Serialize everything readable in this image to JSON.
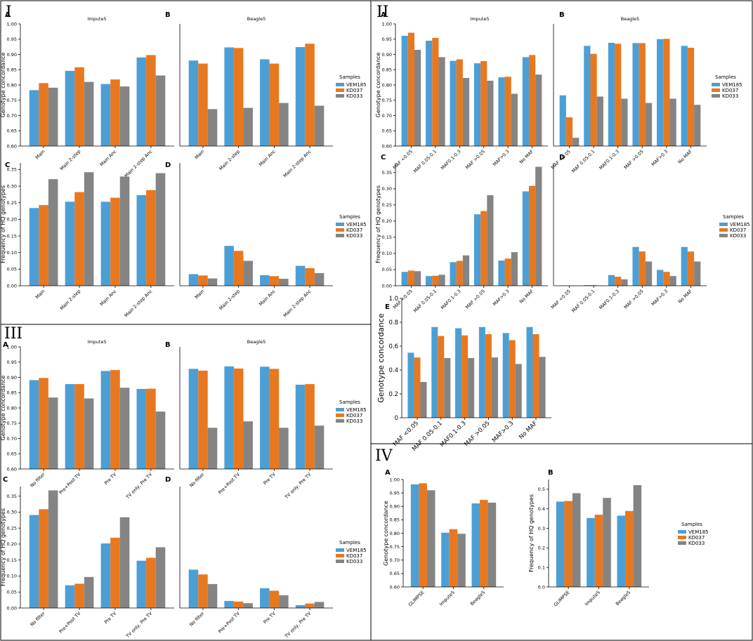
{
  "colors": {
    "VEM185": "#4c9fd5",
    "KD037": "#e8781f",
    "KD033": "#848484",
    "frame": "#000000"
  },
  "chart_data": [
    {
      "id": "I-A",
      "section": "I",
      "panel": "A",
      "title": "Impute5",
      "type": "bar",
      "ylabel": "Genotype concordance",
      "ylim": [
        0.6,
        1.0
      ],
      "yticks": [
        "0.60",
        "0.65",
        "0.70",
        "0.75",
        "0.80",
        "0.85",
        "0.90",
        "0.95",
        "1.00"
      ],
      "categories": [
        "Main",
        "Main 2-step",
        "Main Anc",
        "Main 2-step Anc"
      ],
      "series": [
        {
          "name": "VEM185",
          "values": [
            0.783,
            0.846,
            0.803,
            0.89
          ]
        },
        {
          "name": "KD037",
          "values": [
            0.806,
            0.858,
            0.818,
            0.898
          ]
        },
        {
          "name": "KD033",
          "values": [
            0.791,
            0.81,
            0.795,
            0.831
          ]
        }
      ]
    },
    {
      "id": "I-B",
      "section": "I",
      "panel": "B",
      "title": "Beagle5",
      "type": "bar",
      "ylabel": "",
      "ylim": [
        0.6,
        1.0
      ],
      "yticks": [],
      "categories": [
        "Main",
        "Main 2-step",
        "Main Anc",
        "Main 2-step Anc"
      ],
      "legend": {
        "title": "Samples",
        "items": [
          "VEM185",
          "KD037",
          "KD033"
        ]
      },
      "series": [
        {
          "name": "VEM185",
          "values": [
            0.88,
            0.923,
            0.884,
            0.924
          ]
        },
        {
          "name": "KD037",
          "values": [
            0.87,
            0.921,
            0.87,
            0.935
          ]
        },
        {
          "name": "KD033",
          "values": [
            0.721,
            0.725,
            0.741,
            0.732
          ]
        }
      ]
    },
    {
      "id": "I-C",
      "section": "I",
      "panel": "C",
      "title": "",
      "type": "bar",
      "ylabel": "Frequency of HQ genotypes",
      "ylim": [
        0,
        0.37
      ],
      "yticks": [
        "0.00",
        "0.05",
        "0.10",
        "0.15",
        "0.20",
        "0.25",
        "0.30",
        "0.35"
      ],
      "categories": [
        "Main",
        "Main 2-step",
        "Main Anc",
        "Main 2-step Anc"
      ],
      "series": [
        {
          "name": "VEM185",
          "values": [
            0.234,
            0.253,
            0.253,
            0.273
          ]
        },
        {
          "name": "KD037",
          "values": [
            0.243,
            0.282,
            0.265,
            0.288
          ]
        },
        {
          "name": "KD033",
          "values": [
            0.321,
            0.342,
            0.329,
            0.339
          ]
        }
      ]
    },
    {
      "id": "I-D",
      "section": "I",
      "panel": "D",
      "title": "",
      "type": "bar",
      "ylabel": "",
      "ylim": [
        0,
        0.37
      ],
      "yticks": [],
      "categories": [
        "Main",
        "Main 2-step",
        "Main Anc",
        "Main 2-step Anc"
      ],
      "legend": {
        "title": "Samples",
        "items": [
          "VEM185",
          "KD037",
          "KD033"
        ]
      },
      "series": [
        {
          "name": "VEM185",
          "values": [
            0.035,
            0.12,
            0.032,
            0.06
          ]
        },
        {
          "name": "KD037",
          "values": [
            0.031,
            0.105,
            0.029,
            0.053
          ]
        },
        {
          "name": "KD033",
          "values": [
            0.022,
            0.075,
            0.021,
            0.038
          ]
        }
      ]
    },
    {
      "id": "II-A",
      "section": "II",
      "panel": "A",
      "title": "Impute5",
      "type": "bar",
      "ylabel": "Genotype concordance",
      "ylim": [
        0.6,
        1.0
      ],
      "yticks": [
        "0.60",
        "0.65",
        "0.70",
        "0.75",
        "0.80",
        "0.85",
        "0.90",
        "0.95",
        "1.00"
      ],
      "categories": [
        "MAF <0.05",
        "MAF 0.05-0.1",
        "MAF0.1-0.3",
        "MAF >0.05",
        "MAF>0.3",
        "No MAF"
      ],
      "series": [
        {
          "name": "VEM185",
          "values": [
            0.961,
            0.945,
            0.879,
            0.871,
            0.825,
            0.891
          ]
        },
        {
          "name": "KD037",
          "values": [
            0.971,
            0.954,
            0.884,
            0.878,
            0.827,
            0.898
          ]
        },
        {
          "name": "KD033",
          "values": [
            0.915,
            0.891,
            0.823,
            0.814,
            0.771,
            0.834
          ]
        }
      ]
    },
    {
      "id": "II-B",
      "section": "II",
      "panel": "B",
      "title": "Beagle5",
      "type": "bar",
      "ylabel": "",
      "ylim": [
        0.6,
        1.0
      ],
      "yticks": [],
      "categories": [
        "MAF <0.05",
        "MAF 0.05-0.1",
        "MAF0.1-0.3",
        "MAF >0.05",
        "MAF>0.3",
        "No MAF"
      ],
      "legend": {
        "title": "Samples",
        "items": [
          "VEM185",
          "KD037",
          "KD033"
        ]
      },
      "series": [
        {
          "name": "VEM185",
          "values": [
            0.766,
            0.928,
            0.938,
            0.937,
            0.95,
            0.928
          ]
        },
        {
          "name": "KD037",
          "values": [
            0.694,
            0.902,
            0.935,
            0.937,
            0.951,
            0.922
          ]
        },
        {
          "name": "KD033",
          "values": [
            0.627,
            0.762,
            0.755,
            0.741,
            0.755,
            0.735
          ]
        }
      ]
    },
    {
      "id": "II-C",
      "section": "II",
      "panel": "C",
      "title": "",
      "type": "bar",
      "ylabel": "Frequency of HQ genotypes",
      "ylim": [
        0,
        0.38
      ],
      "yticks": [
        "0.00",
        "0.05",
        "0.10",
        "0.15",
        "0.20",
        "0.25",
        "0.30",
        "0.35"
      ],
      "categories": [
        "MAF <0.05",
        "MAF 0.05-0.1",
        "MAF0.1-0.3",
        "MAF >0.05",
        "MAF>0.3",
        "No MAF"
      ],
      "series": [
        {
          "name": "VEM185",
          "values": [
            0.043,
            0.03,
            0.073,
            0.221,
            0.078,
            0.292
          ]
        },
        {
          "name": "KD037",
          "values": [
            0.047,
            0.031,
            0.077,
            0.231,
            0.084,
            0.309
          ]
        },
        {
          "name": "KD033",
          "values": [
            0.045,
            0.034,
            0.094,
            0.28,
            0.104,
            0.368
          ]
        }
      ]
    },
    {
      "id": "II-D",
      "section": "II",
      "panel": "D",
      "title": "",
      "type": "bar",
      "ylabel": "",
      "ylim": [
        0,
        0.38
      ],
      "yticks": [],
      "categories": [
        "MAF <0.05",
        "MAF 0.05-0.1",
        "MAF0.1-0.3",
        "MAF >0.05",
        "MAF>0.3",
        "No MAF"
      ],
      "legend": {
        "title": "Samples",
        "items": [
          "VEM185",
          "KD037",
          "KD033"
        ]
      },
      "series": [
        {
          "name": "VEM185",
          "values": [
            0.001,
            0.002,
            0.033,
            0.12,
            0.049,
            0.12
          ]
        },
        {
          "name": "KD037",
          "values": [
            0.001,
            0.002,
            0.028,
            0.106,
            0.043,
            0.106
          ]
        },
        {
          "name": "KD033",
          "values": [
            0.001,
            0.001,
            0.02,
            0.075,
            0.03,
            0.075
          ]
        }
      ]
    },
    {
      "id": "II-E",
      "section": "II",
      "panel": "E",
      "title": "",
      "type": "bar",
      "ylabel": "Genotype concordance",
      "ylim": [
        0,
        1.0
      ],
      "yticks": [
        "0",
        "0.2",
        "0.4",
        "0.6",
        "0.8",
        "1.0"
      ],
      "categories": [
        "MAF <0.05",
        "MAF 0.05-0.1",
        "MAF0.1-0.3",
        "MAF >0.05",
        "MAF>0.3",
        "No MAF"
      ],
      "series": [
        {
          "name": "VEM185",
          "values": [
            0.545,
            0.76,
            0.75,
            0.76,
            0.71,
            0.76
          ]
        },
        {
          "name": "KD037",
          "values": [
            0.505,
            0.685,
            0.69,
            0.7,
            0.65,
            0.7
          ]
        },
        {
          "name": "KD033",
          "values": [
            0.3,
            0.5,
            0.5,
            0.505,
            0.45,
            0.51
          ]
        }
      ]
    },
    {
      "id": "III-A",
      "section": "III",
      "panel": "A",
      "title": "Impute5",
      "type": "bar",
      "ylabel": "Genotype concordance",
      "ylim": [
        0.6,
        1.0
      ],
      "yticks": [
        "0.60",
        "0.65",
        "0.70",
        "0.75",
        "0.80",
        "0.85",
        "0.90",
        "0.95",
        "1.00"
      ],
      "categories": [
        "No filter",
        "Pre+Post TV",
        "Pre TV",
        "TV only, Pre TV"
      ],
      "series": [
        {
          "name": "VEM185",
          "values": [
            0.891,
            0.878,
            0.921,
            0.862
          ]
        },
        {
          "name": "KD037",
          "values": [
            0.898,
            0.878,
            0.924,
            0.863
          ]
        },
        {
          "name": "KD033",
          "values": [
            0.834,
            0.831,
            0.866,
            0.788
          ]
        }
      ]
    },
    {
      "id": "III-B",
      "section": "III",
      "panel": "B",
      "title": "Beagle5",
      "type": "bar",
      "ylabel": "",
      "ylim": [
        0.6,
        1.0
      ],
      "yticks": [],
      "categories": [
        "No filter",
        "Pre+Post TV",
        "Pre TV",
        "TV only, Pre TV"
      ],
      "legend": {
        "title": "Samples",
        "items": [
          "VEM185",
          "KD037",
          "KD033"
        ]
      },
      "series": [
        {
          "name": "VEM185",
          "values": [
            0.928,
            0.936,
            0.935,
            0.876
          ]
        },
        {
          "name": "KD037",
          "values": [
            0.922,
            0.929,
            0.928,
            0.878
          ]
        },
        {
          "name": "KD033",
          "values": [
            0.735,
            0.756,
            0.735,
            0.742
          ]
        }
      ]
    },
    {
      "id": "III-C",
      "section": "III",
      "panel": "C",
      "title": "",
      "type": "bar",
      "ylabel": "Frequency of HQ genotypes",
      "ylim": [
        0,
        0.38
      ],
      "yticks": [
        "0.00",
        "0.05",
        "0.10",
        "0.15",
        "0.20",
        "0.25",
        "0.30",
        "0.35"
      ],
      "categories": [
        "No filter",
        "Pre+Post TV",
        "Pre TV",
        "TV only, Pre TV"
      ],
      "series": [
        {
          "name": "VEM185",
          "values": [
            0.291,
            0.071,
            0.202,
            0.148
          ]
        },
        {
          "name": "KD037",
          "values": [
            0.309,
            0.076,
            0.22,
            0.157
          ]
        },
        {
          "name": "KD033",
          "values": [
            0.368,
            0.097,
            0.284,
            0.19
          ]
        }
      ]
    },
    {
      "id": "III-D",
      "section": "III",
      "panel": "D",
      "title": "",
      "type": "bar",
      "ylabel": "",
      "ylim": [
        0,
        0.38
      ],
      "yticks": [],
      "categories": [
        "No filter",
        "Pre+Post TV",
        "Pre TV",
        "TV only, Pre TV"
      ],
      "legend": {
        "title": "Samples",
        "items": [
          "VEM185",
          "KD037",
          "KD033"
        ]
      },
      "series": [
        {
          "name": "VEM185",
          "values": [
            0.12,
            0.022,
            0.062,
            0.009
          ]
        },
        {
          "name": "KD037",
          "values": [
            0.105,
            0.02,
            0.054,
            0.014
          ]
        },
        {
          "name": "KD033",
          "values": [
            0.075,
            0.015,
            0.04,
            0.019
          ]
        }
      ]
    },
    {
      "id": "IV-A",
      "section": "IV",
      "panel": "A",
      "title": "",
      "type": "bar",
      "ylabel": "Genotype concordance",
      "ylim": [
        0.6,
        1.0
      ],
      "yticks": [
        "0.60",
        "0.65",
        "0.70",
        "0.75",
        "0.80",
        "0.85",
        "0.90",
        "0.95",
        "1.00"
      ],
      "categories": [
        "GLIMPSE",
        "Impute5",
        "Beagle5"
      ],
      "series": [
        {
          "name": "VEM185",
          "values": [
            0.982,
            0.802,
            0.911
          ]
        },
        {
          "name": "KD037",
          "values": [
            0.986,
            0.815,
            0.924
          ]
        },
        {
          "name": "KD033",
          "values": [
            0.96,
            0.798,
            0.914
          ]
        }
      ]
    },
    {
      "id": "IV-B",
      "section": "IV",
      "panel": "B",
      "title": "",
      "type": "bar",
      "ylabel": "Frequency of HQ genotypes",
      "ylim": [
        0,
        0.55
      ],
      "yticks": [
        "0.0",
        "0.1",
        "0.2",
        "0.3",
        "0.4",
        "0.5"
      ],
      "categories": [
        "GLIMPSE",
        "Impute5",
        "Beagle5"
      ],
      "legend": {
        "title": "Samples",
        "items": [
          "VEM185",
          "KD037",
          "KD033"
        ]
      },
      "series": [
        {
          "name": "VEM185",
          "values": [
            0.437,
            0.353,
            0.365
          ]
        },
        {
          "name": "KD037",
          "values": [
            0.44,
            0.37,
            0.389
          ]
        },
        {
          "name": "KD033",
          "values": [
            0.48,
            0.456,
            0.521
          ]
        }
      ]
    }
  ],
  "sections": [
    {
      "id": "I",
      "label": "I"
    },
    {
      "id": "II",
      "label": "II"
    },
    {
      "id": "III",
      "label": "III"
    },
    {
      "id": "IV",
      "label": "IV"
    }
  ]
}
